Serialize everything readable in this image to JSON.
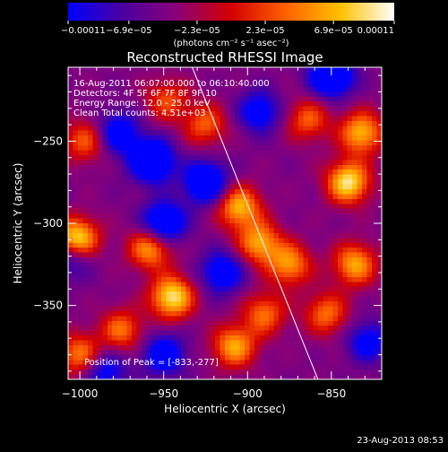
{
  "chart_data": {
    "type": "heatmap",
    "title": "Reconstructed RHESSI Image",
    "xlabel": "Heliocentric X (arcsec)",
    "ylabel": "Heliocentric Y (arcsec)",
    "xlim": [
      -1007,
      -820
    ],
    "ylim": [
      -395,
      -205
    ],
    "x_ticks": [
      -1000,
      -950,
      -900,
      -850
    ],
    "x_tick_labels": [
      "−1000",
      "−950",
      "−900",
      "−850"
    ],
    "y_ticks": [
      -250,
      -300,
      -350
    ],
    "y_tick_labels": [
      "−250",
      "−300",
      "−350"
    ],
    "colorbar": {
      "ticks": [
        -0.00011,
        -6.9e-05,
        -2.3e-05,
        2.3e-05,
        6.9e-05,
        0.00011
      ],
      "tick_labels": [
        "−0.00011",
        "−6.9e−05",
        "−2.3e−05",
        "2.3e−05",
        "6.9e−05",
        "0.00011"
      ],
      "unit_label": "(photons cm⁻² s⁻¹ asec⁻²)",
      "colors": [
        "#0000ff",
        "#4b00a0",
        "#8a0078",
        "#d40000",
        "#ff6000",
        "#ffc000",
        "#ffffff"
      ]
    },
    "annotations": {
      "time_range": "16-Aug-2011 06:07:00.000 to 06:10:40.000",
      "detectors": "Detectors: 4F 5F 6F 7F 8F 9F 10",
      "energy_range": "Energy Range: 12.0 - 25.0 keV",
      "clean_counts": "Clean    Total counts: 4.51e+03",
      "peak_position": "Position of Peak = [-833,-277]"
    },
    "limb_line": [
      [
        -933,
        -205
      ],
      [
        -858,
        -395
      ]
    ],
    "peak": [
      -833,
      -277
    ],
    "bright_sources": [
      {
        "x": -1002,
        "y": -310,
        "level": 1.0
      },
      {
        "x": -945,
        "y": -345,
        "level": 0.9
      },
      {
        "x": -958,
        "y": -315,
        "level": 0.7
      },
      {
        "x": -905,
        "y": -290,
        "level": 0.75
      },
      {
        "x": -893,
        "y": -312,
        "level": 0.7
      },
      {
        "x": -875,
        "y": -325,
        "level": 0.65
      },
      {
        "x": -836,
        "y": -325,
        "level": 0.7
      },
      {
        "x": -840,
        "y": -275,
        "level": 0.9
      },
      {
        "x": -832,
        "y": -245,
        "level": 0.75
      },
      {
        "x": -925,
        "y": -240,
        "level": 0.5
      },
      {
        "x": -890,
        "y": -355,
        "level": 0.55
      },
      {
        "x": -908,
        "y": -375,
        "level": 0.7
      },
      {
        "x": -997,
        "y": -250,
        "level": 0.5
      },
      {
        "x": -975,
        "y": -365,
        "level": 0.55
      },
      {
        "x": -948,
        "y": -225,
        "level": 0.45
      },
      {
        "x": -864,
        "y": -237,
        "level": 0.5
      },
      {
        "x": -1000,
        "y": -380,
        "level": 0.6
      },
      {
        "x": -853,
        "y": -355,
        "level": 0.55
      }
    ],
    "dark_sources": [
      {
        "x": -957,
        "y": -262,
        "level": 0.9
      },
      {
        "x": -950,
        "y": -300,
        "level": 0.8
      },
      {
        "x": -925,
        "y": -275,
        "level": 0.8
      },
      {
        "x": -977,
        "y": -245,
        "level": 0.6
      },
      {
        "x": -850,
        "y": -210,
        "level": 0.9
      },
      {
        "x": -893,
        "y": -232,
        "level": 0.55
      },
      {
        "x": -1005,
        "y": -320,
        "level": 0.5
      },
      {
        "x": -915,
        "y": -330,
        "level": 0.6
      },
      {
        "x": -985,
        "y": -390,
        "level": 0.5
      },
      {
        "x": -828,
        "y": -372,
        "level": 0.5
      },
      {
        "x": -950,
        "y": -380,
        "level": 0.6
      }
    ]
  },
  "footer": {
    "timestamp": "23-Aug-2013 08:53"
  }
}
